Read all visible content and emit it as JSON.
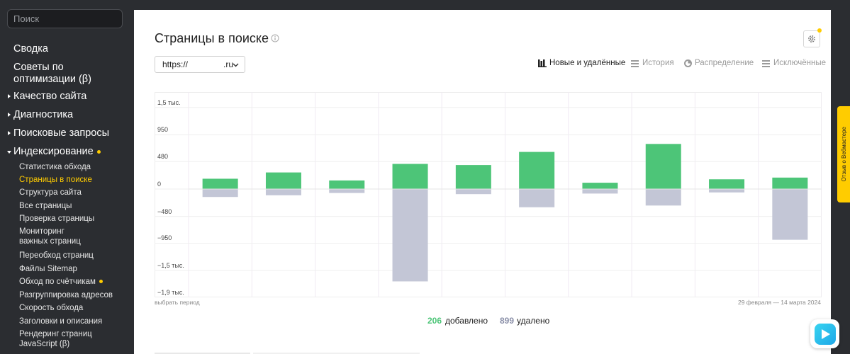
{
  "sidebar": {
    "search_placeholder": "Поиск",
    "top": [
      {
        "label": "Сводка"
      },
      {
        "label": "Советы по оптимизации (β)"
      },
      {
        "label": "Качество сайта"
      },
      {
        "label": "Диагностика"
      },
      {
        "label": "Поисковые запросы"
      },
      {
        "label": "Индексирование"
      }
    ],
    "sub": [
      {
        "label": "Статистика обхода"
      },
      {
        "label": "Страницы в поиске"
      },
      {
        "label": "Структура сайта"
      },
      {
        "label": "Все страницы"
      },
      {
        "label": "Проверка страницы"
      },
      {
        "label": "Мониторинг"
      },
      {
        "label": "важных страниц"
      },
      {
        "label": "Переобход страниц"
      },
      {
        "label": "Файлы Sitemap"
      },
      {
        "label": "Обход по счётчикам"
      },
      {
        "label": "Разгруппировка адресов"
      },
      {
        "label": "Скорость обхода"
      },
      {
        "label": "Заголовки и описания"
      },
      {
        "label": "Рендеринг страниц"
      },
      {
        "label": "JavaScript (β)"
      }
    ]
  },
  "main": {
    "title": "Страницы в поиске",
    "site": {
      "scheme": "https://",
      "tld": ".ru"
    },
    "tabs": [
      {
        "label": "Новые и удалённые",
        "icon": "bars-icon"
      },
      {
        "label": "История",
        "icon": "history-icon"
      },
      {
        "label": "Распределение",
        "icon": "pie-icon"
      },
      {
        "label": "Исключённые",
        "icon": "excluded-icon"
      }
    ],
    "period_link": "выбрать период",
    "period_range": "29 февраля — 14 марта 2024",
    "summary": {
      "added_count": "206",
      "added_label": "добавлено",
      "removed_count": "899",
      "removed_label": "удалено"
    }
  },
  "feedback": {
    "label": "Отзыв о Вебмастере"
  },
  "colors": {
    "added": "#4dc578",
    "removed": "#c3c6d6",
    "accent": "#ffcc00"
  },
  "chart_data": {
    "type": "bar",
    "y_ticks": [
      "1,5 тыс.",
      "950",
      "480",
      "0",
      "−480",
      "−950",
      "−1,5 тыс.",
      "−1,9 тыс."
    ],
    "y_tick_values": [
      1430,
      950,
      480,
      0,
      -480,
      -950,
      -1430,
      -1900
    ],
    "ylim": [
      -1900,
      1700
    ],
    "series": [
      {
        "values": [
          180,
          290,
          150,
          440,
          420,
          650,
          110,
          790,
          170,
          200
        ]
      },
      {
        "values": [
          -140,
          -110,
          -70,
          -1620,
          -90,
          -320,
          -80,
          -290,
          -60,
          -890
        ]
      }
    ]
  }
}
